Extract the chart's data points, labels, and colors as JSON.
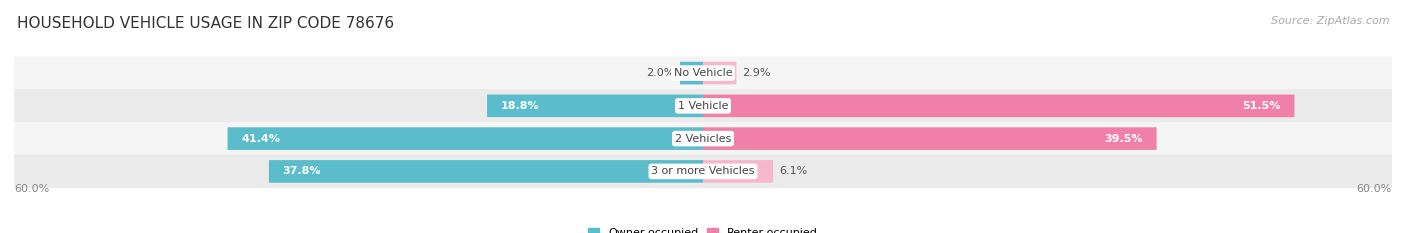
{
  "title": "HOUSEHOLD VEHICLE USAGE IN ZIP CODE 78676",
  "source": "Source: ZipAtlas.com",
  "categories": [
    "No Vehicle",
    "1 Vehicle",
    "2 Vehicles",
    "3 or more Vehicles"
  ],
  "owner_values": [
    2.0,
    18.8,
    41.4,
    37.8
  ],
  "renter_values": [
    2.9,
    51.5,
    39.5,
    6.1
  ],
  "owner_color": "#5bbccc",
  "renter_color": "#f080a8",
  "renter_color_light": "#f8b8cc",
  "row_bg_colors": [
    "#f2f2f2",
    "#f2f2f2",
    "#f2f2f2",
    "#f2f2f2"
  ],
  "max_value": 60.0,
  "legend_owner": "Owner-occupied",
  "legend_renter": "Renter-occupied",
  "title_fontsize": 11,
  "source_fontsize": 8,
  "label_fontsize": 8,
  "category_fontsize": 8,
  "axis_fontsize": 8,
  "small_threshold": 8.0
}
